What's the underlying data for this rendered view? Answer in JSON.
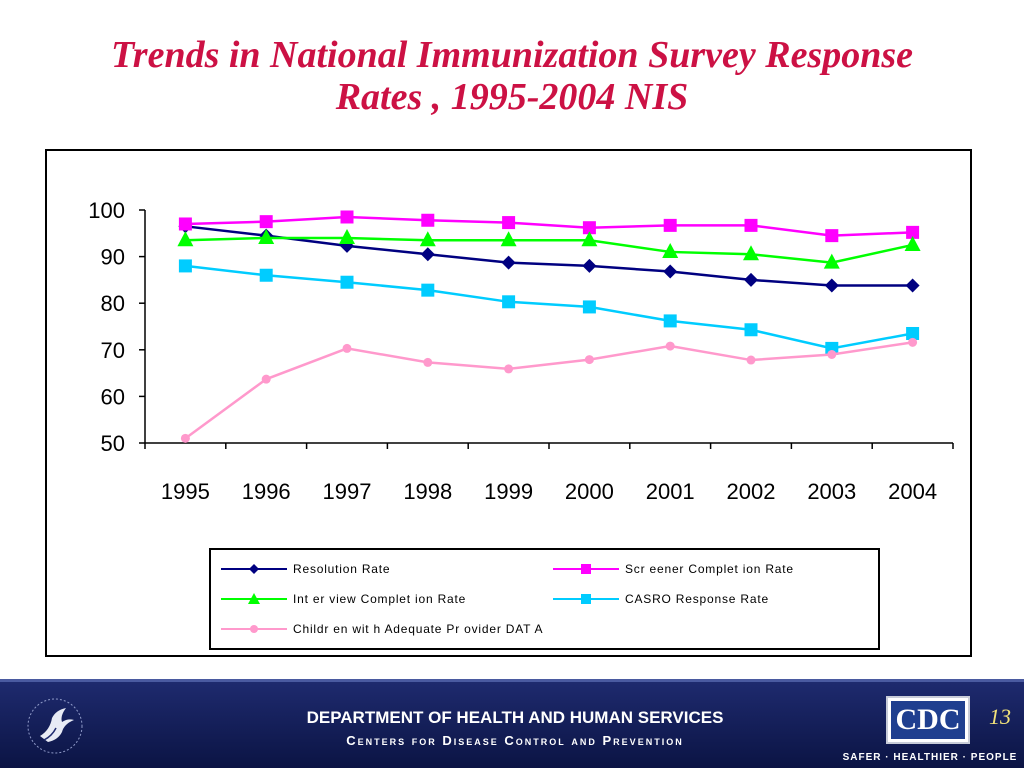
{
  "slide": {
    "title_line1": "Trends in National Immunization Survey Response",
    "title_line2": "Rates , 1995-2004 NIS"
  },
  "chart_data": {
    "type": "line",
    "title": "",
    "xlabel": "",
    "ylabel": "",
    "x": [
      "1995",
      "1996",
      "1997",
      "1998",
      "1999",
      "2000",
      "2001",
      "2002",
      "2003",
      "2004"
    ],
    "ylim": [
      50,
      100
    ],
    "yticks": [
      "50",
      "60",
      "70",
      "80",
      "90",
      "100"
    ],
    "grid": false,
    "legend_position": "bottom",
    "series": [
      {
        "name": "Resolution Rate",
        "color": "#000080",
        "marker": "diamond",
        "values": [
          96.5,
          94.5,
          92.3,
          90.5,
          88.7,
          88.0,
          86.8,
          85.0,
          83.8,
          83.8
        ]
      },
      {
        "name": "Screener Completion Rate",
        "color": "#ff00ff",
        "marker": "square",
        "values": [
          97.0,
          97.5,
          98.5,
          97.8,
          97.3,
          96.2,
          96.7,
          96.7,
          94.5,
          95.2
        ]
      },
      {
        "name": "Interview Completion Rate",
        "color": "#00ff00",
        "marker": "triangle",
        "values": [
          93.5,
          94.0,
          94.0,
          93.5,
          93.5,
          93.5,
          91.0,
          90.5,
          88.7,
          92.5
        ]
      },
      {
        "name": "CASRO Response Rate",
        "color": "#00ccff",
        "marker": "square",
        "values": [
          88.0,
          86.0,
          84.5,
          82.8,
          80.3,
          79.2,
          76.2,
          74.3,
          70.3,
          73.5
        ]
      },
      {
        "name": "Children with Adequate Provider DATA",
        "color": "#ff99cc",
        "marker": "circle",
        "values": [
          51.0,
          63.7,
          70.3,
          67.3,
          65.9,
          67.9,
          70.8,
          67.8,
          69.0,
          71.6
        ]
      }
    ]
  },
  "legend": {
    "items": [
      "Resolution Rate",
      "Scr eener Complet ion Rate",
      "Int er view Complet ion Rate",
      "CASRO Response Rate",
      "Childr en wit h Adequate Pr ovider DAT A"
    ]
  },
  "footer": {
    "department": "DEPARTMENT OF HEALTH AND HUMAN SERVICES",
    "center": "Centers for Disease Control and Prevention",
    "logo_text": "CDC",
    "page_number": "13",
    "tagline": "SAFER · HEALTHIER · PEOPLE"
  }
}
